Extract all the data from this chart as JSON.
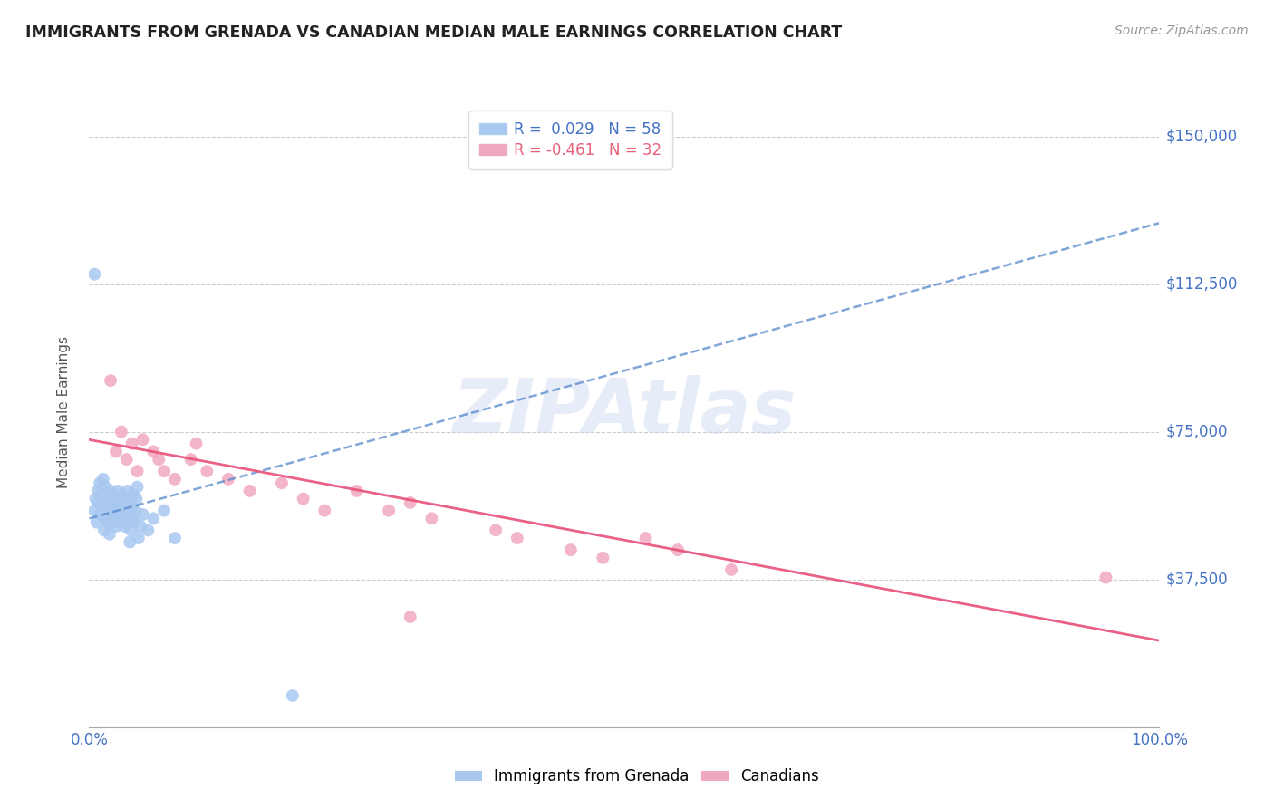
{
  "title": "IMMIGRANTS FROM GRENADA VS CANADIAN MEDIAN MALE EARNINGS CORRELATION CHART",
  "source_text": "Source: ZipAtlas.com",
  "ylabel": "Median Male Earnings",
  "y_tick_labels": [
    "$37,500",
    "$75,000",
    "$112,500",
    "$150,000"
  ],
  "y_tick_values": [
    37500,
    75000,
    112500,
    150000
  ],
  "x_tick_labels": [
    "0.0%",
    "100.0%"
  ],
  "xlim": [
    0.0,
    1.0
  ],
  "ylim": [
    0,
    160000
  ],
  "legend_label1": "Immigrants from Grenada",
  "legend_label2": "Canadians",
  "watermark": "ZIPAtlas",
  "blue_color": "#a8c8f0",
  "pink_color": "#f0a8c0",
  "blue_line_color": "#5588cc",
  "pink_line_color": "#e8507a",
  "grid_color": "#cccccc",
  "blue_scatter_x": [
    0.005,
    0.006,
    0.007,
    0.008,
    0.009,
    0.01,
    0.01,
    0.011,
    0.012,
    0.013,
    0.014,
    0.015,
    0.015,
    0.016,
    0.017,
    0.018,
    0.019,
    0.02,
    0.02,
    0.02,
    0.021,
    0.022,
    0.022,
    0.023,
    0.024,
    0.025,
    0.025,
    0.026,
    0.027,
    0.028,
    0.029,
    0.03,
    0.03,
    0.031,
    0.032,
    0.033,
    0.034,
    0.035,
    0.036,
    0.037,
    0.038,
    0.039,
    0.04,
    0.04,
    0.041,
    0.042,
    0.043,
    0.044,
    0.045,
    0.046,
    0.048,
    0.05,
    0.055,
    0.06,
    0.07,
    0.08,
    0.005,
    0.19
  ],
  "blue_scatter_y": [
    55000,
    58000,
    52000,
    60000,
    57000,
    54000,
    62000,
    59000,
    56000,
    63000,
    50000,
    53000,
    61000,
    58000,
    55000,
    52000,
    49000,
    57000,
    60000,
    53000,
    56000,
    59000,
    52000,
    55000,
    58000,
    51000,
    54000,
    57000,
    60000,
    53000,
    56000,
    59000,
    52000,
    55000,
    58000,
    51000,
    54000,
    57000,
    60000,
    53000,
    47000,
    50000,
    53000,
    56000,
    59000,
    52000,
    55000,
    58000,
    61000,
    48000,
    51000,
    54000,
    50000,
    53000,
    55000,
    48000,
    115000,
    8000
  ],
  "pink_scatter_x": [
    0.02,
    0.025,
    0.03,
    0.035,
    0.04,
    0.045,
    0.05,
    0.06,
    0.065,
    0.07,
    0.08,
    0.095,
    0.1,
    0.11,
    0.13,
    0.15,
    0.18,
    0.2,
    0.22,
    0.25,
    0.28,
    0.3,
    0.32,
    0.38,
    0.4,
    0.45,
    0.48,
    0.52,
    0.55,
    0.6,
    0.3,
    0.95
  ],
  "pink_scatter_y": [
    88000,
    70000,
    75000,
    68000,
    72000,
    65000,
    73000,
    70000,
    68000,
    65000,
    63000,
    68000,
    72000,
    65000,
    63000,
    60000,
    62000,
    58000,
    55000,
    60000,
    55000,
    57000,
    53000,
    50000,
    48000,
    45000,
    43000,
    48000,
    45000,
    40000,
    28000,
    38000
  ],
  "blue_trend_x": [
    0.0,
    1.0
  ],
  "blue_trend_y": [
    53000,
    128000
  ],
  "pink_trend_x": [
    0.0,
    1.0
  ],
  "pink_trend_y": [
    73000,
    22000
  ]
}
